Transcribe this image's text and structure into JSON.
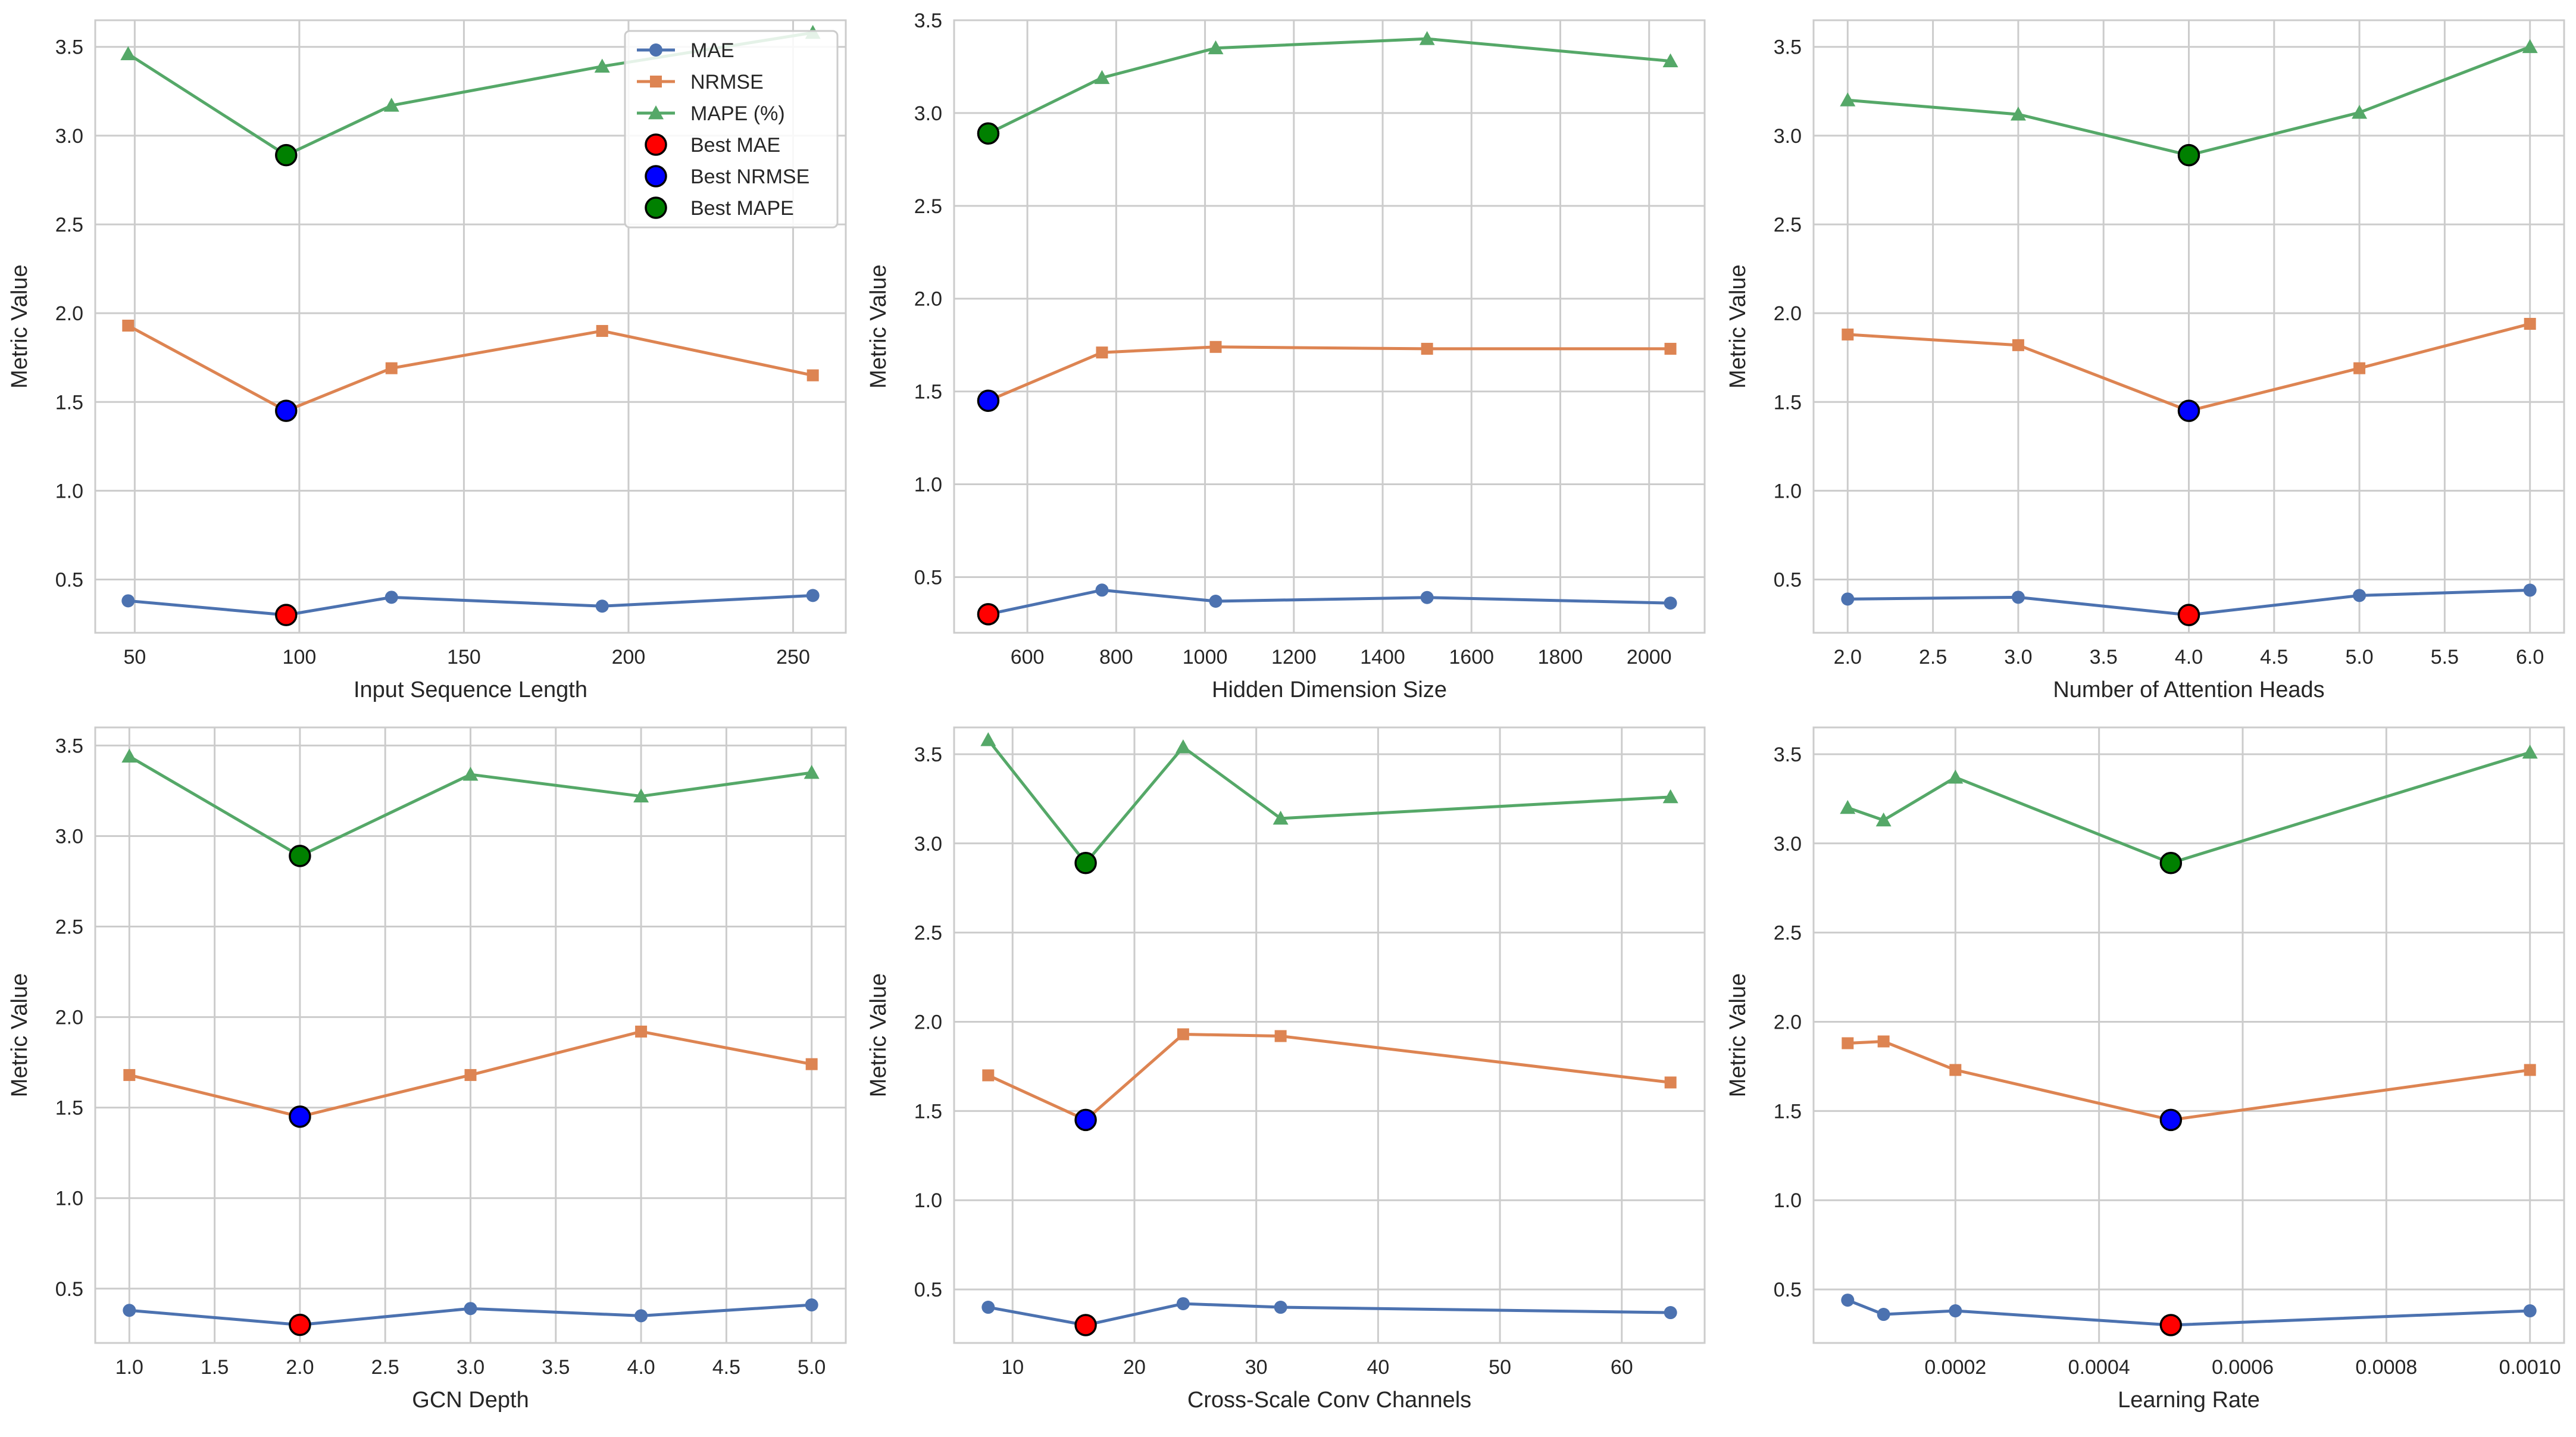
{
  "colors": {
    "mae": "#4c72b0",
    "nrmse": "#dd8452",
    "mape": "#55a868",
    "best_mae": "#ff0000",
    "best_nrmse": "#0000ff",
    "best_mape": "#008000",
    "grid": "#cccccc",
    "frame": "#cccccc"
  },
  "legend": {
    "mae": "MAE",
    "nrmse": "NRMSE",
    "mape": "MAPE (%)",
    "best_mae": "Best MAE",
    "best_nrmse": "Best NRMSE",
    "best_mape": "Best MAPE"
  },
  "chart_data": [
    {
      "type": "line",
      "xlabel": "Input Sequence Length",
      "ylabel": "Metric Value",
      "x": [
        48,
        96,
        128,
        192,
        256
      ],
      "xlim": [
        38,
        266
      ],
      "ylim": [
        0.2,
        3.65
      ],
      "xticks": [
        50,
        100,
        150,
        200,
        250
      ],
      "xtick_labels": [
        "50",
        "100",
        "150",
        "200",
        "250"
      ],
      "yticks": [
        0.5,
        1.0,
        1.5,
        2.0,
        2.5,
        3.0,
        3.5
      ],
      "ytick_labels": [
        "0.5",
        "1.0",
        "1.5",
        "2.0",
        "2.5",
        "3.0",
        "3.5"
      ],
      "series": [
        {
          "name": "MAE",
          "values": [
            0.38,
            0.3,
            0.4,
            0.35,
            0.41
          ]
        },
        {
          "name": "NRMSE",
          "values": [
            1.93,
            1.45,
            1.69,
            1.9,
            1.65
          ]
        },
        {
          "name": "MAPE (%)",
          "values": [
            3.46,
            2.89,
            3.17,
            3.39,
            3.58
          ]
        }
      ],
      "best_index": 1,
      "legend": "top-right"
    },
    {
      "type": "line",
      "xlabel": "Hidden Dimension Size",
      "ylabel": "Metric Value",
      "x": [
        512,
        768,
        1024,
        1500,
        2048
      ],
      "xlim": [
        435,
        2125
      ],
      "ylim": [
        0.2,
        3.5
      ],
      "xticks": [
        600,
        800,
        1000,
        1200,
        1400,
        1600,
        1800,
        2000
      ],
      "xtick_labels": [
        "600",
        "800",
        "1000",
        "1200",
        "1400",
        "1600",
        "1800",
        "2000"
      ],
      "yticks": [
        0.5,
        1.0,
        1.5,
        2.0,
        2.5,
        3.0,
        3.5
      ],
      "ytick_labels": [
        "0.5",
        "1.0",
        "1.5",
        "2.0",
        "2.5",
        "3.0",
        "3.5"
      ],
      "series": [
        {
          "name": "MAE",
          "values": [
            0.3,
            0.43,
            0.37,
            0.39,
            0.36
          ]
        },
        {
          "name": "NRMSE",
          "values": [
            1.45,
            1.71,
            1.74,
            1.73,
            1.73
          ]
        },
        {
          "name": "MAPE (%)",
          "values": [
            2.89,
            3.19,
            3.35,
            3.4,
            3.28
          ]
        }
      ],
      "best_index": 0
    },
    {
      "type": "line",
      "xlabel": "Number of Attention Heads",
      "ylabel": "Metric Value",
      "x": [
        2,
        3,
        4,
        5,
        6
      ],
      "xlim": [
        1.8,
        6.2
      ],
      "ylim": [
        0.2,
        3.65
      ],
      "xticks": [
        2.0,
        2.5,
        3.0,
        3.5,
        4.0,
        4.5,
        5.0,
        5.5,
        6.0
      ],
      "xtick_labels": [
        "2.0",
        "2.5",
        "3.0",
        "3.5",
        "4.0",
        "4.5",
        "5.0",
        "5.5",
        "6.0"
      ],
      "yticks": [
        0.5,
        1.0,
        1.5,
        2.0,
        2.5,
        3.0,
        3.5
      ],
      "ytick_labels": [
        "0.5",
        "1.0",
        "1.5",
        "2.0",
        "2.5",
        "3.0",
        "3.5"
      ],
      "series": [
        {
          "name": "MAE",
          "values": [
            0.39,
            0.4,
            0.3,
            0.41,
            0.44
          ]
        },
        {
          "name": "NRMSE",
          "values": [
            1.88,
            1.82,
            1.45,
            1.69,
            1.94
          ]
        },
        {
          "name": "MAPE (%)",
          "values": [
            3.2,
            3.12,
            2.89,
            3.13,
            3.5
          ]
        }
      ],
      "best_index": 2
    },
    {
      "type": "line",
      "xlabel": "GCN Depth",
      "ylabel": "Metric Value",
      "x": [
        1,
        2,
        3,
        4,
        5
      ],
      "xlim": [
        0.8,
        5.2
      ],
      "ylim": [
        0.2,
        3.6
      ],
      "xticks": [
        1.0,
        1.5,
        2.0,
        2.5,
        3.0,
        3.5,
        4.0,
        4.5,
        5.0
      ],
      "xtick_labels": [
        "1.0",
        "1.5",
        "2.0",
        "2.5",
        "3.0",
        "3.5",
        "4.0",
        "4.5",
        "5.0"
      ],
      "yticks": [
        0.5,
        1.0,
        1.5,
        2.0,
        2.5,
        3.0,
        3.5
      ],
      "ytick_labels": [
        "0.5",
        "1.0",
        "1.5",
        "2.0",
        "2.5",
        "3.0",
        "3.5"
      ],
      "series": [
        {
          "name": "MAE",
          "values": [
            0.38,
            0.3,
            0.39,
            0.35,
            0.41
          ]
        },
        {
          "name": "NRMSE",
          "values": [
            1.68,
            1.45,
            1.68,
            1.92,
            1.74
          ]
        },
        {
          "name": "MAPE (%)",
          "values": [
            3.44,
            2.89,
            3.34,
            3.22,
            3.35
          ]
        }
      ],
      "best_index": 1
    },
    {
      "type": "line",
      "xlabel": "Cross-Scale Conv Channels",
      "ylabel": "Metric Value",
      "x": [
        8,
        16,
        24,
        32,
        64
      ],
      "xlim": [
        5.2,
        66.8
      ],
      "ylim": [
        0.2,
        3.65
      ],
      "xticks": [
        10,
        20,
        30,
        40,
        50,
        60
      ],
      "xtick_labels": [
        "10",
        "20",
        "30",
        "40",
        "50",
        "60"
      ],
      "yticks": [
        0.5,
        1.0,
        1.5,
        2.0,
        2.5,
        3.0,
        3.5
      ],
      "ytick_labels": [
        "0.5",
        "1.0",
        "1.5",
        "2.0",
        "2.5",
        "3.0",
        "3.5"
      ],
      "series": [
        {
          "name": "MAE",
          "values": [
            0.4,
            0.3,
            0.42,
            0.4,
            0.37
          ]
        },
        {
          "name": "NRMSE",
          "values": [
            1.7,
            1.45,
            1.93,
            1.92,
            1.66
          ]
        },
        {
          "name": "MAPE (%)",
          "values": [
            3.58,
            2.89,
            3.54,
            3.14,
            3.26
          ]
        }
      ],
      "best_index": 1
    },
    {
      "type": "line",
      "xlabel": "Learning Rate",
      "ylabel": "Metric Value",
      "x": [
        5e-05,
        0.0001,
        0.0002,
        0.0005,
        0.001
      ],
      "xlim": [
        2.5e-06,
        0.0010475
      ],
      "ylim": [
        0.2,
        3.65
      ],
      "xticks": [
        0.0002,
        0.0004,
        0.0006,
        0.0008,
        0.001
      ],
      "xtick_labels": [
        "0.0002",
        "0.0004",
        "0.0006",
        "0.0008",
        "0.0010"
      ],
      "yticks": [
        0.5,
        1.0,
        1.5,
        2.0,
        2.5,
        3.0,
        3.5
      ],
      "ytick_labels": [
        "0.5",
        "1.0",
        "1.5",
        "2.0",
        "2.5",
        "3.0",
        "3.5"
      ],
      "series": [
        {
          "name": "MAE",
          "values": [
            0.44,
            0.36,
            0.38,
            0.3,
            0.38
          ]
        },
        {
          "name": "NRMSE",
          "values": [
            1.88,
            1.89,
            1.73,
            1.45,
            1.73
          ]
        },
        {
          "name": "MAPE (%)",
          "values": [
            3.2,
            3.13,
            3.37,
            2.89,
            3.51
          ]
        }
      ],
      "best_index": 3
    }
  ]
}
